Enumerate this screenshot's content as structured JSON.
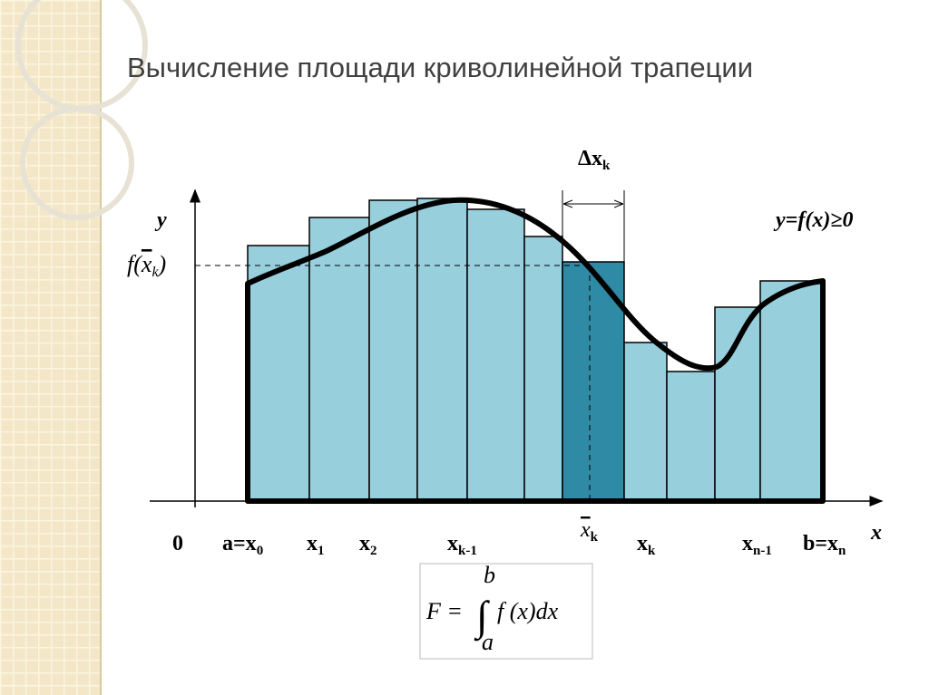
{
  "title": "Вычисление площади криволинейной трапеции",
  "diagram": {
    "y_axis_label": "y",
    "x_axis_label": "x",
    "origin_label": "0",
    "curve_label": "y=f(x)≥0",
    "f_label": {
      "prefix": "f(",
      "var": "x",
      "sub": "k",
      "suffix": ")"
    },
    "delta_label": {
      "base": "Δx",
      "sub": "k"
    },
    "x_labels": [
      {
        "base": "a=x",
        "sub": "0"
      },
      {
        "base": "x",
        "sub": "1"
      },
      {
        "base": "x",
        "sub": "2"
      },
      {
        "base": "x",
        "sub": "k-1"
      },
      {
        "base": "x",
        "sub": "k"
      },
      {
        "base": "x",
        "sub": "k"
      },
      {
        "base": "x",
        "sub": "n-1"
      },
      {
        "base": "b=x",
        "sub": "n"
      }
    ]
  },
  "formula": {
    "lhs": "F =",
    "integral_sign": "∫",
    "integrand": "f (x)dx",
    "lower": "a",
    "upper": "b"
  }
}
